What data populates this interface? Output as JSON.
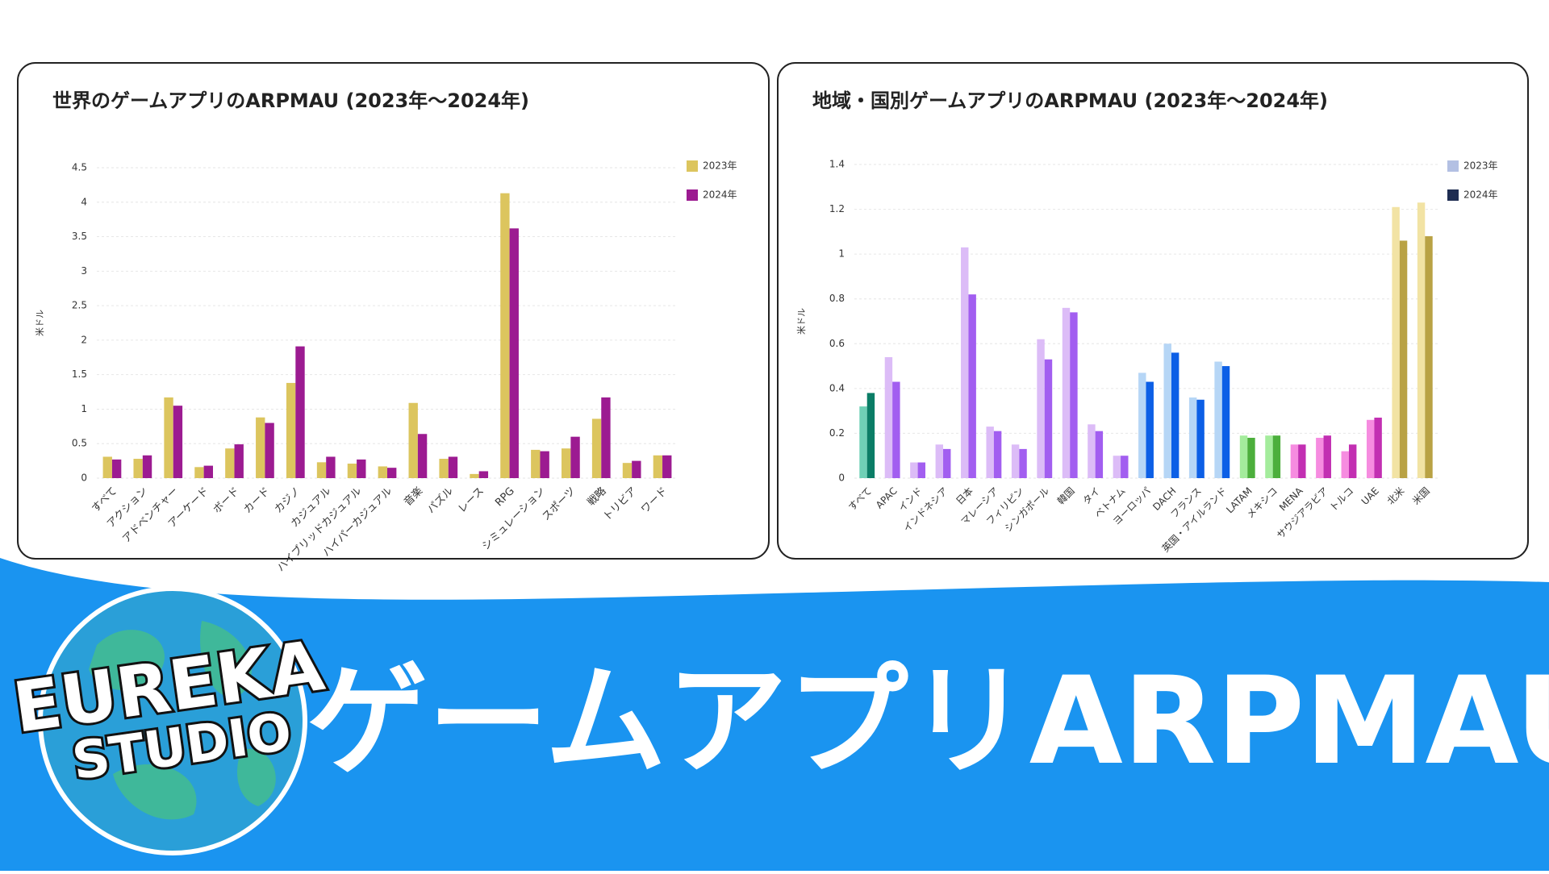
{
  "chart_data": [
    {
      "type": "bar",
      "title": "世界のゲームアプリのARPMAU (2023年〜2024年)",
      "y_label": "米ドル",
      "categories": [
        "すべて",
        "アクション",
        "アドベンチャー",
        "アーケード",
        "ボード",
        "カード",
        "カジノ",
        "カジュアル",
        "ハイブリッドカジュアル",
        "ハイパーカジュアル",
        "音楽",
        "パズル",
        "レース",
        "RPG",
        "シミュレーション",
        "スポーツ",
        "戦略",
        "トリビア",
        "ワード"
      ],
      "series": [
        {
          "name": "2023年",
          "color": "#dcc55e",
          "values": [
            0.31,
            0.28,
            1.17,
            0.16,
            0.43,
            0.88,
            1.38,
            0.23,
            0.21,
            0.17,
            1.09,
            0.28,
            0.06,
            4.13,
            0.41,
            0.43,
            0.86,
            0.22,
            0.33
          ]
        },
        {
          "name": "2024年",
          "color": "#9c1b91",
          "values": [
            0.27,
            0.33,
            1.05,
            0.18,
            0.49,
            0.8,
            1.91,
            0.31,
            0.27,
            0.15,
            0.64,
            0.31,
            0.1,
            3.62,
            0.39,
            0.6,
            1.17,
            0.25,
            0.33
          ]
        }
      ],
      "ylim": [
        0,
        4.5
      ],
      "yticks": [
        0,
        0.5,
        1,
        1.5,
        2,
        2.5,
        3,
        3.5,
        4,
        4.5
      ],
      "grid": true,
      "legend": "top-right"
    },
    {
      "type": "bar",
      "title": "地域・国別ゲームアプリのARPMAU (2023年〜2024年)",
      "y_label": "米ドル",
      "categories": [
        "すべて",
        "APAC",
        "インド",
        "インドネシア",
        "日本",
        "マレーシア",
        "フィリピン",
        "シンガポール",
        "韓国",
        "タイ",
        "ベトナム",
        "ヨーロッパ",
        "DACH",
        "フランス",
        "英国・アイルランド",
        "LATAM",
        "メキシコ",
        "MENA",
        "サウジアラビア",
        "トルコ",
        "UAE",
        "北米",
        "米国"
      ],
      "series": [
        {
          "name": "2023年",
          "color": "#b3c0e3",
          "values": [
            0.32,
            0.54,
            0.07,
            0.15,
            1.03,
            0.23,
            0.15,
            0.62,
            0.76,
            0.24,
            0.1,
            0.47,
            0.6,
            0.36,
            0.52,
            0.19,
            0.19,
            0.15,
            0.18,
            0.12,
            0.26,
            1.21,
            1.23
          ],
          "colors": [
            "#6fd0b6",
            "#dcbcf7",
            "#dcbcf7",
            "#dcbcf7",
            "#dcbcf7",
            "#dcbcf7",
            "#dcbcf7",
            "#dcbcf7",
            "#dcbcf7",
            "#dcbcf7",
            "#dcbcf7",
            "#b6d6f6",
            "#b6d6f6",
            "#b6d6f6",
            "#b6d6f6",
            "#a4ec9c",
            "#a4ec9c",
            "#f68ce0",
            "#f68ce0",
            "#f68ce0",
            "#f68ce0",
            "#f2e3a4",
            "#f2e3a4"
          ]
        },
        {
          "name": "2024年",
          "color": "#1f2d52",
          "values": [
            0.38,
            0.43,
            0.07,
            0.13,
            0.82,
            0.21,
            0.13,
            0.53,
            0.74,
            0.21,
            0.1,
            0.43,
            0.56,
            0.35,
            0.5,
            0.18,
            0.19,
            0.15,
            0.19,
            0.15,
            0.27,
            1.06,
            1.08
          ],
          "colors": [
            "#0b7d66",
            "#a25ef0",
            "#a25ef0",
            "#a25ef0",
            "#a25ef0",
            "#a25ef0",
            "#a25ef0",
            "#a25ef0",
            "#a25ef0",
            "#a25ef0",
            "#a25ef0",
            "#0c5fe6",
            "#0c5fe6",
            "#0c5fe6",
            "#0c5fe6",
            "#4caf3c",
            "#4caf3c",
            "#c22fb2",
            "#c22fb2",
            "#c22fb2",
            "#c22fb2",
            "#b9a244",
            "#b9a244"
          ]
        }
      ],
      "ylim": [
        0,
        1.4
      ],
      "yticks": [
        0,
        0.2,
        0.4,
        0.6,
        0.8,
        1,
        1.2,
        1.4
      ],
      "grid": true,
      "legend": "top-right"
    }
  ],
  "banner": {
    "title": "ゲームアプリARPMAU",
    "logo": [
      "EUREKA",
      "STUDIO"
    ]
  }
}
